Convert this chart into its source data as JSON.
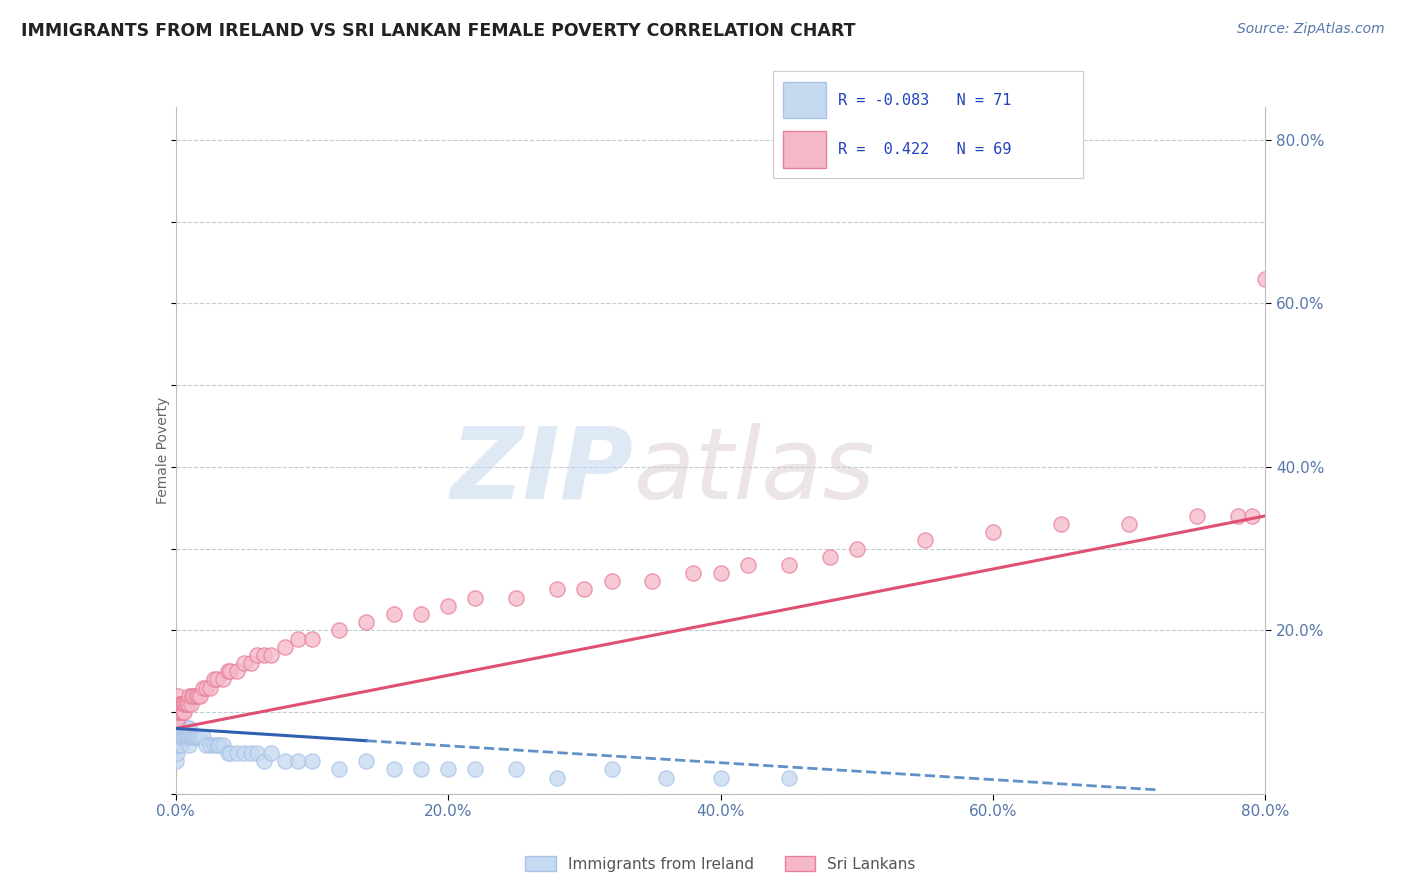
{
  "title": "IMMIGRANTS FROM IRELAND VS SRI LANKAN FEMALE POVERTY CORRELATION CHART",
  "source_text": "Source: ZipAtlas.com",
  "ylabel": "Female Poverty",
  "watermark_zip": "ZIP",
  "watermark_atlas": "atlas",
  "xlim": [
    0.0,
    0.8
  ],
  "ylim": [
    0.0,
    0.84
  ],
  "x_ticks": [
    0.0,
    0.2,
    0.4,
    0.6,
    0.8
  ],
  "y_ticks_right": [
    0.2,
    0.4,
    0.6,
    0.8
  ],
  "ireland_color": "#aac4e8",
  "ireland_fill": "#c5d9f0",
  "srilanka_color": "#e8809a",
  "srilanka_fill": "#f5b8c8",
  "trend_ireland_solid_color": "#3060b0",
  "trend_ireland_dash_color": "#6090c8",
  "trend_srilanka_color": "#e05070",
  "background_color": "#ffffff",
  "grid_color": "#c0ccd8",
  "title_color": "#222222",
  "axis_label_color": "#5577aa",
  "legend_text_color": "#2244bb",
  "ireland_R": -0.083,
  "ireland_N": 71,
  "srilanka_R": 0.422,
  "srilanka_N": 69,
  "ireland_scatter_x": [
    0.0,
    0.0,
    0.0,
    0.0,
    0.0,
    0.0,
    0.001,
    0.001,
    0.001,
    0.001,
    0.001,
    0.002,
    0.002,
    0.002,
    0.002,
    0.003,
    0.003,
    0.003,
    0.004,
    0.004,
    0.004,
    0.005,
    0.005,
    0.006,
    0.006,
    0.007,
    0.007,
    0.008,
    0.008,
    0.009,
    0.009,
    0.01,
    0.01,
    0.01,
    0.011,
    0.012,
    0.013,
    0.014,
    0.015,
    0.016,
    0.018,
    0.02,
    0.022,
    0.025,
    0.028,
    0.03,
    0.032,
    0.035,
    0.038,
    0.04,
    0.045,
    0.05,
    0.055,
    0.06,
    0.065,
    0.07,
    0.08,
    0.09,
    0.1,
    0.12,
    0.14,
    0.16,
    0.18,
    0.2,
    0.22,
    0.25,
    0.28,
    0.32,
    0.36,
    0.4,
    0.45
  ],
  "ireland_scatter_y": [
    0.04,
    0.06,
    0.07,
    0.08,
    0.09,
    0.1,
    0.05,
    0.06,
    0.07,
    0.08,
    0.09,
    0.06,
    0.07,
    0.08,
    0.09,
    0.06,
    0.07,
    0.08,
    0.06,
    0.07,
    0.08,
    0.07,
    0.08,
    0.07,
    0.08,
    0.07,
    0.08,
    0.07,
    0.08,
    0.07,
    0.08,
    0.06,
    0.07,
    0.08,
    0.07,
    0.07,
    0.07,
    0.07,
    0.07,
    0.07,
    0.07,
    0.07,
    0.06,
    0.06,
    0.06,
    0.06,
    0.06,
    0.06,
    0.05,
    0.05,
    0.05,
    0.05,
    0.05,
    0.05,
    0.04,
    0.05,
    0.04,
    0.04,
    0.04,
    0.03,
    0.04,
    0.03,
    0.03,
    0.03,
    0.03,
    0.03,
    0.02,
    0.03,
    0.02,
    0.02,
    0.02
  ],
  "srilanka_scatter_x": [
    0.0,
    0.0,
    0.0,
    0.001,
    0.001,
    0.001,
    0.002,
    0.002,
    0.002,
    0.003,
    0.003,
    0.004,
    0.004,
    0.005,
    0.005,
    0.006,
    0.006,
    0.007,
    0.008,
    0.009,
    0.01,
    0.011,
    0.012,
    0.013,
    0.015,
    0.016,
    0.018,
    0.02,
    0.022,
    0.025,
    0.028,
    0.03,
    0.035,
    0.038,
    0.04,
    0.045,
    0.05,
    0.055,
    0.06,
    0.065,
    0.07,
    0.08,
    0.09,
    0.1,
    0.12,
    0.14,
    0.16,
    0.18,
    0.2,
    0.22,
    0.25,
    0.28,
    0.3,
    0.32,
    0.35,
    0.38,
    0.4,
    0.42,
    0.45,
    0.48,
    0.5,
    0.55,
    0.6,
    0.65,
    0.7,
    0.75,
    0.78,
    0.79,
    0.8
  ],
  "srilanka_scatter_y": [
    0.09,
    0.1,
    0.11,
    0.09,
    0.1,
    0.11,
    0.1,
    0.11,
    0.12,
    0.1,
    0.11,
    0.1,
    0.11,
    0.1,
    0.11,
    0.1,
    0.11,
    0.11,
    0.11,
    0.11,
    0.12,
    0.11,
    0.12,
    0.12,
    0.12,
    0.12,
    0.12,
    0.13,
    0.13,
    0.13,
    0.14,
    0.14,
    0.14,
    0.15,
    0.15,
    0.15,
    0.16,
    0.16,
    0.17,
    0.17,
    0.17,
    0.18,
    0.19,
    0.19,
    0.2,
    0.21,
    0.22,
    0.22,
    0.23,
    0.24,
    0.24,
    0.25,
    0.25,
    0.26,
    0.26,
    0.27,
    0.27,
    0.28,
    0.28,
    0.29,
    0.3,
    0.31,
    0.32,
    0.33,
    0.33,
    0.34,
    0.34,
    0.34,
    0.63
  ],
  "ireland_trend_x0": 0.0,
  "ireland_trend_x_solid_end": 0.14,
  "ireland_trend_x_dash_end": 0.72,
  "ireland_trend_y0": 0.08,
  "ireland_trend_y_solid_end": 0.065,
  "ireland_trend_y_dash_end": 0.005,
  "srilanka_trend_x0": 0.0,
  "srilanka_trend_x1": 0.8,
  "srilanka_trend_y0": 0.08,
  "srilanka_trend_y1": 0.34
}
